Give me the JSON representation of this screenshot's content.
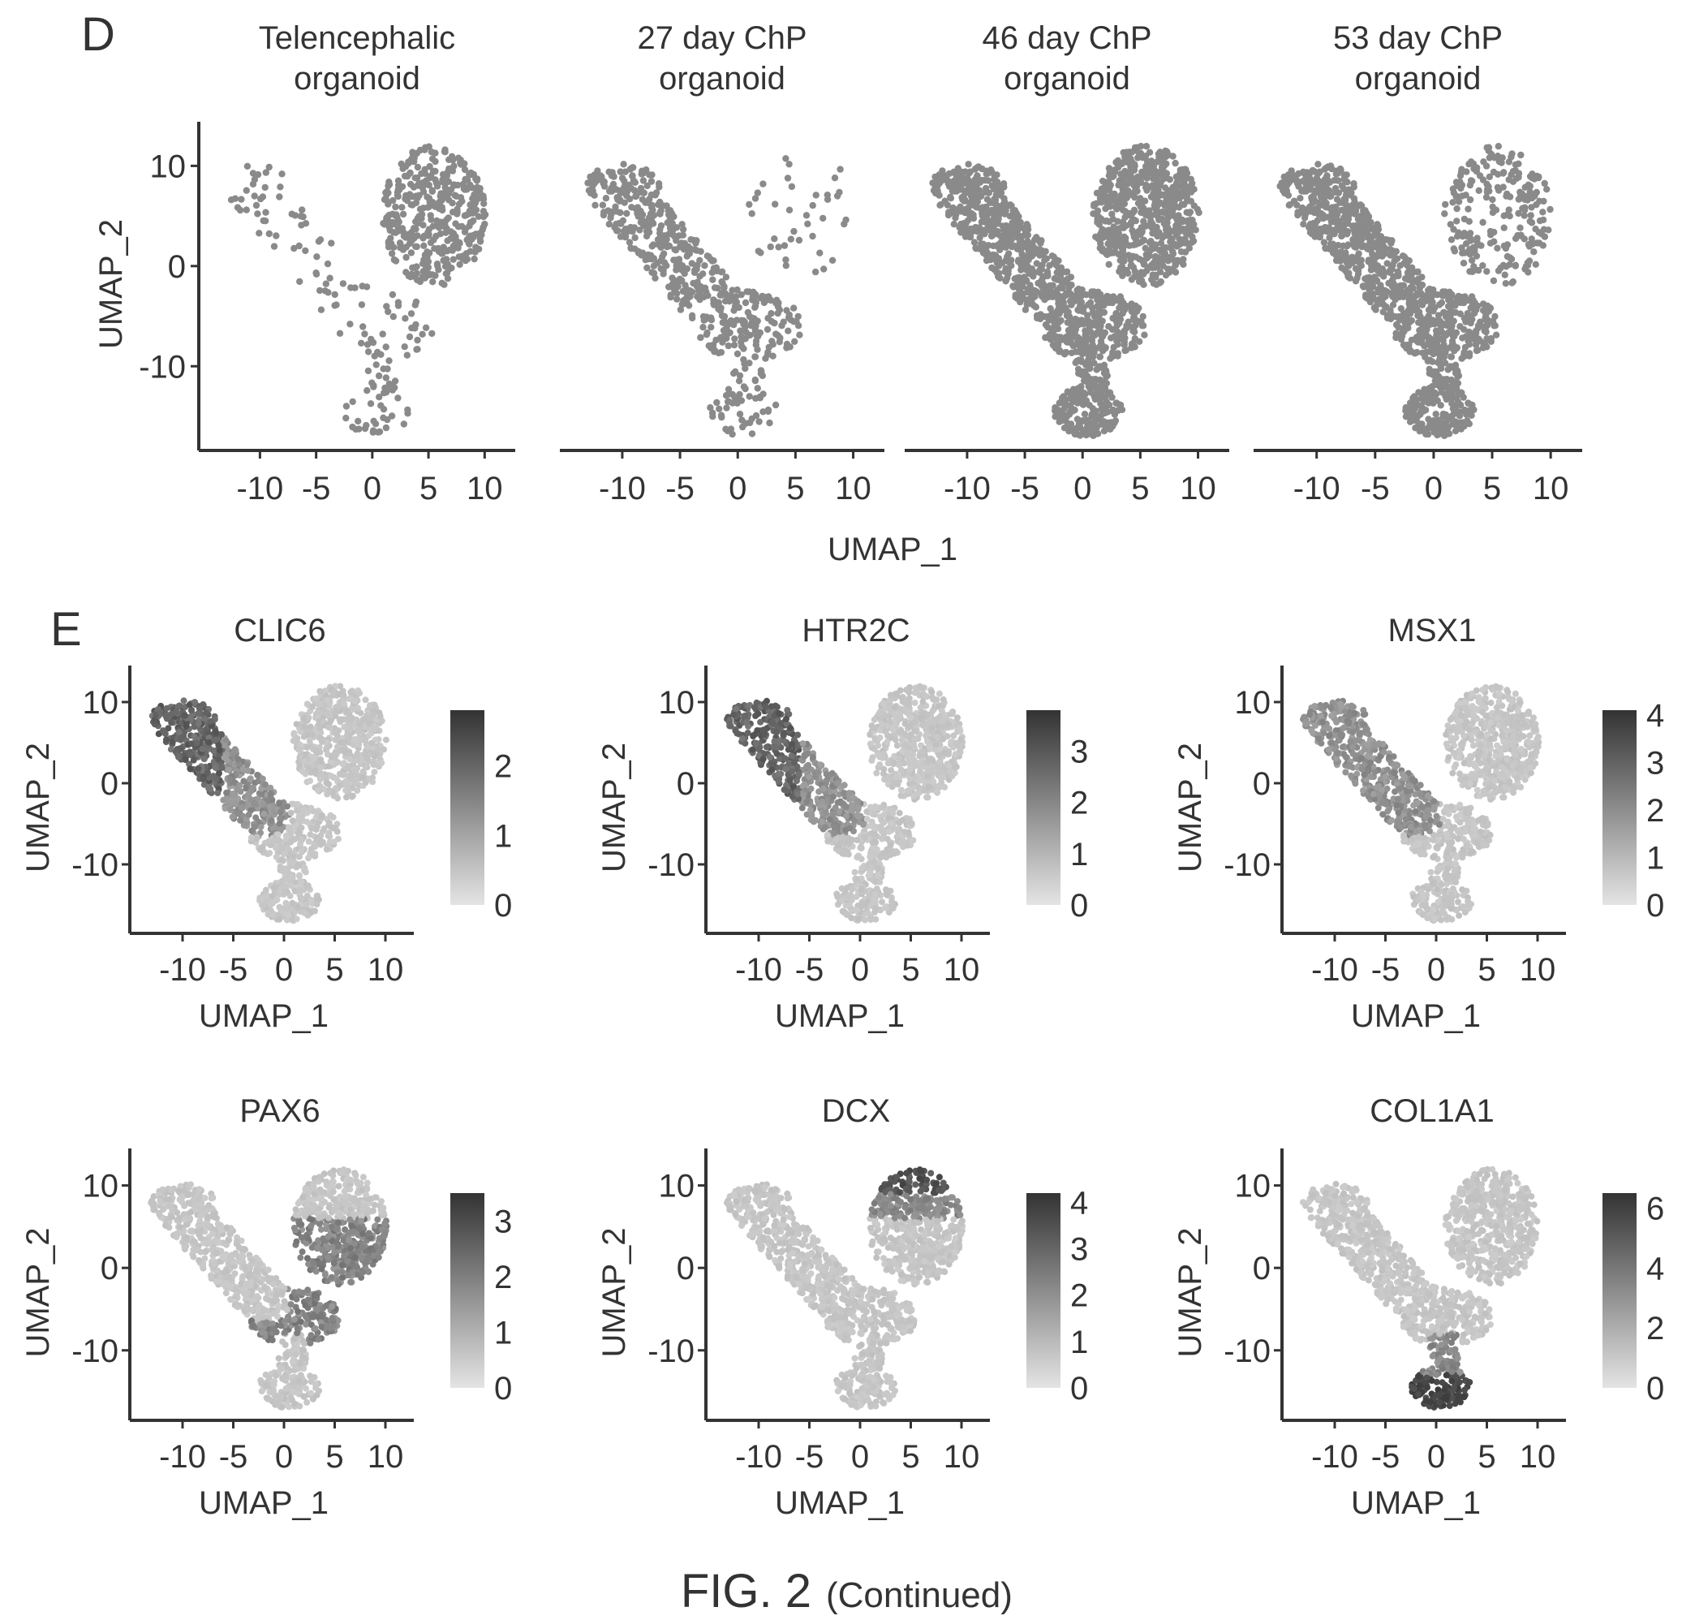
{
  "figure": {
    "caption_main": "FIG. 2",
    "caption_sub": "(Continued)"
  },
  "chart_data": [
    {
      "panel": "D",
      "type": "scatter",
      "subplots": [
        {
          "title": [
            "Telencephalic",
            "organoid"
          ],
          "density": "sparse-left",
          "y_ticks": [
            "10",
            "0",
            "-10"
          ]
        },
        {
          "title": [
            "27 day ChP",
            "organoid"
          ],
          "density": "band",
          "y_ticks": []
        },
        {
          "title": [
            "46 day ChP",
            "organoid"
          ],
          "density": "dense",
          "y_ticks": []
        },
        {
          "title": [
            "53 day ChP",
            "organoid"
          ],
          "density": "dense-left",
          "y_ticks": []
        }
      ],
      "x_ticks": [
        "-10",
        "-5",
        "0",
        "5",
        "10"
      ],
      "xlabel": "UMAP_1",
      "ylabel": "UMAP_2",
      "xlim": [
        -14,
        12
      ],
      "ylim": [
        -18,
        14
      ],
      "point_color": "#8a8a8a"
    },
    {
      "panel": "E",
      "type": "scatter",
      "color_mapped": true,
      "subplots": [
        {
          "title": "CLIC6",
          "colorbar_ticks": [
            "2",
            "1",
            "0"
          ],
          "colorbar_max": 2.8,
          "high_region": "left-arm"
        },
        {
          "title": "HTR2C",
          "colorbar_ticks": [
            "3",
            "2",
            "1",
            "0"
          ],
          "colorbar_max": 3.8,
          "high_region": "left-arm"
        },
        {
          "title": "MSX1",
          "colorbar_ticks": [
            "4",
            "3",
            "2",
            "1",
            "0"
          ],
          "colorbar_max": 4.1,
          "high_region": "left-arm-mild"
        },
        {
          "title": "PAX6",
          "colorbar_ticks": [
            "3",
            "2",
            "1",
            "0"
          ],
          "colorbar_max": 3.5,
          "high_region": "center-right"
        },
        {
          "title": "DCX",
          "colorbar_ticks": [
            "4",
            "3",
            "2",
            "1",
            "0"
          ],
          "colorbar_max": 4.2,
          "high_region": "top-right"
        },
        {
          "title": "COL1A1",
          "colorbar_ticks": [
            "6",
            "4",
            "2",
            "0"
          ],
          "colorbar_max": 6.5,
          "high_region": "bottom"
        }
      ],
      "x_ticks": [
        "-10",
        "-5",
        "0",
        "5",
        "10"
      ],
      "y_ticks": [
        "10",
        "0",
        "-10"
      ],
      "xlabel": "UMAP_1",
      "ylabel": "UMAP_2",
      "xlim": [
        -14,
        12
      ],
      "ylim": [
        -18,
        14
      ],
      "color_low": "#d9d9d9",
      "color_high": "#3a3a3a"
    }
  ]
}
